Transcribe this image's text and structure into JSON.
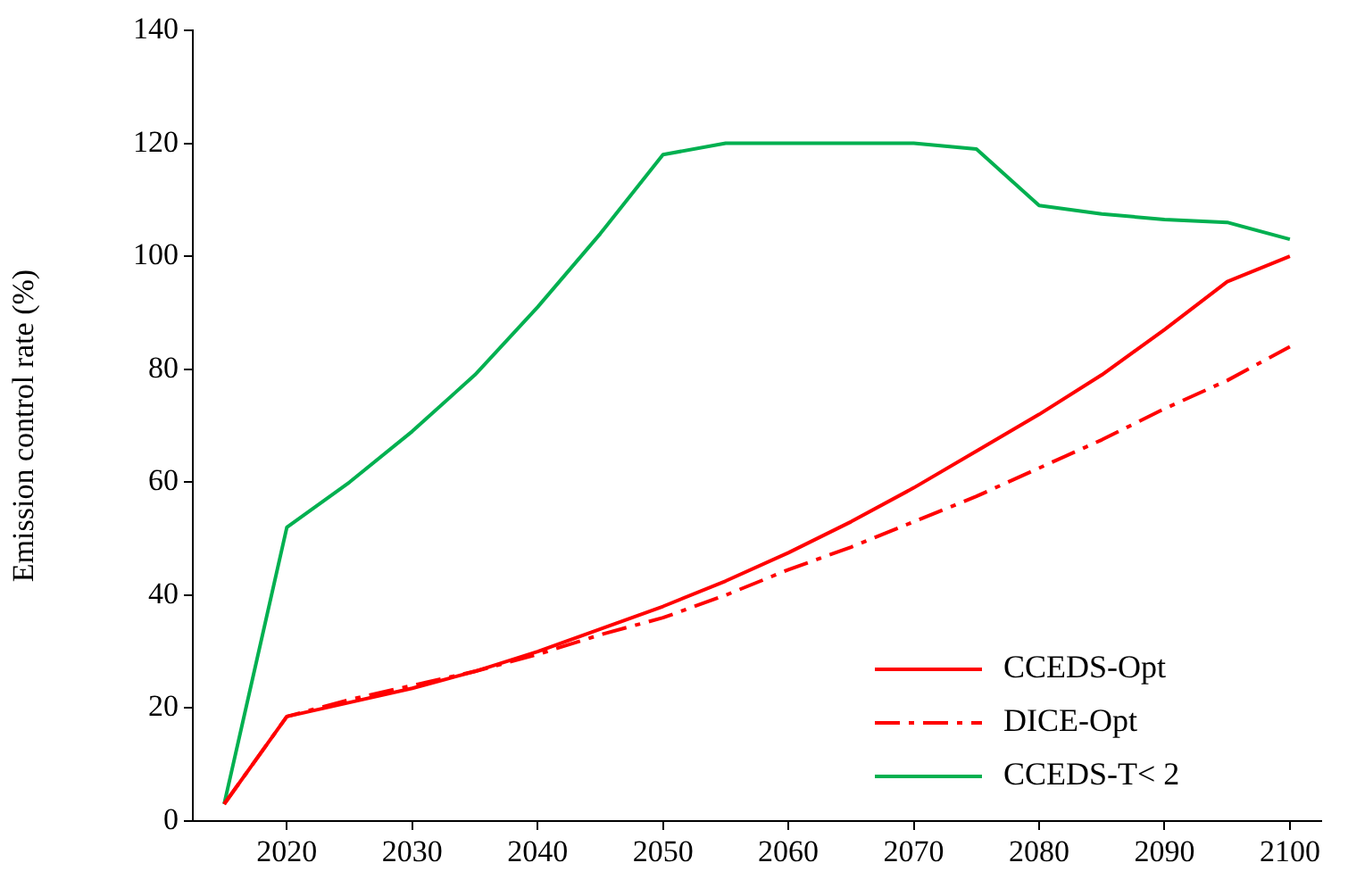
{
  "chart_data": {
    "type": "line",
    "ylabel": "Emission control rate (%)",
    "x": [
      2015,
      2020,
      2025,
      2030,
      2035,
      2040,
      2045,
      2050,
      2055,
      2060,
      2065,
      2070,
      2075,
      2080,
      2085,
      2090,
      2095,
      2100
    ],
    "xlim": [
      2012.5,
      2102.5
    ],
    "xticks": [
      2020,
      2030,
      2040,
      2050,
      2060,
      2070,
      2080,
      2090,
      2100
    ],
    "ylim": [
      0,
      140
    ],
    "yticks": [
      0,
      20,
      40,
      60,
      80,
      100,
      120,
      140
    ],
    "grid": false,
    "legend": "bottom right",
    "marker": "none",
    "series": [
      {
        "name": "CCEDS-Opt",
        "color": "#ff0000",
        "line_style": "solid",
        "values": [
          3,
          18.5,
          21,
          23.5,
          26.5,
          30,
          34,
          38,
          42.5,
          47.5,
          53,
          59,
          65.5,
          72,
          79,
          87,
          95.5,
          100
        ]
      },
      {
        "name": "DICE-Opt",
        "color": "#ff0000",
        "line_style": "dashed",
        "values": [
          3,
          18.5,
          21.5,
          24,
          26.5,
          29.5,
          33,
          36,
          40,
          44.5,
          48.5,
          53,
          57.5,
          62.5,
          67.5,
          73,
          78,
          84
        ]
      },
      {
        "name": "CCEDS-T< 2",
        "color": "#00b050",
        "line_style": "solid",
        "values": [
          3,
          52,
          60,
          69,
          79,
          91,
          104,
          118,
          120,
          120,
          120,
          120,
          119,
          109,
          107.5,
          106.5,
          106,
          103
        ]
      }
    ]
  }
}
